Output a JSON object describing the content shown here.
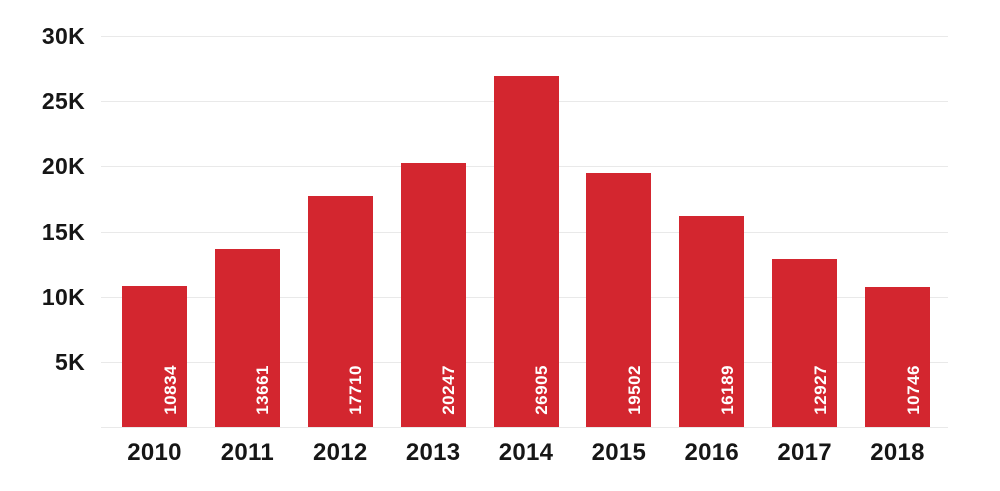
{
  "chart_data": {
    "type": "bar",
    "title": "",
    "xlabel": "",
    "ylabel": "",
    "categories": [
      "2010",
      "2011",
      "2012",
      "2013",
      "2014",
      "2015",
      "2016",
      "2017",
      "2018"
    ],
    "values": [
      10834,
      13661,
      17710,
      20247,
      26905,
      19502,
      16189,
      12927,
      10746
    ],
    "value_labels": [
      "10834",
      "13661",
      "17710",
      "20247",
      "26905",
      "19502",
      "16189",
      "12927",
      "10746"
    ],
    "ylim": [
      0,
      30000
    ],
    "yticks": [
      {
        "value": 30000,
        "label": "30K"
      },
      {
        "value": 25000,
        "label": "25K"
      },
      {
        "value": 20000,
        "label": "20K"
      },
      {
        "value": 15000,
        "label": "15K"
      },
      {
        "value": 10000,
        "label": "10K"
      },
      {
        "value": 5000,
        "label": "5K"
      }
    ],
    "baseline_value": 0,
    "grid": "horizontal",
    "legend": "none",
    "colors": {
      "bar": "#d3262f",
      "bar_value_text": "#ffffff",
      "axis_text": "#161616",
      "gridline": "#e9e9e9",
      "background": "#ffffff"
    }
  }
}
